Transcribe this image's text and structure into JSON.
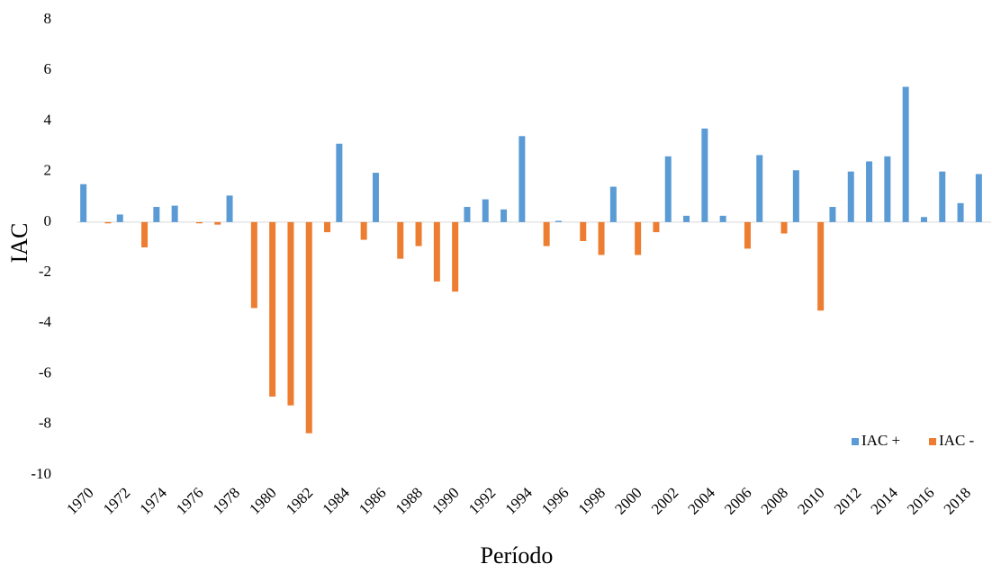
{
  "chart_data": {
    "type": "bar",
    "x_label": "Período",
    "y_label": "IAC",
    "categories": [
      "1970",
      null,
      "1972",
      null,
      "1974",
      null,
      "1976",
      null,
      "1978",
      null,
      "1980",
      null,
      "1982",
      null,
      "1984",
      null,
      "1986",
      null,
      "1988",
      null,
      "1990",
      null,
      "1992",
      null,
      "1994",
      null,
      "1996",
      null,
      "1998",
      null,
      "2000",
      null,
      "2002",
      null,
      "2004",
      null,
      "2006",
      null,
      "2008",
      null,
      "2010",
      null,
      "2012",
      null,
      "2014",
      null,
      "2016",
      null,
      "2018",
      null
    ],
    "series": [
      {
        "name": "IAC +",
        "color": "#5b9bd5",
        "values": [
          1.5,
          null,
          0.3,
          null,
          0.6,
          0.65,
          null,
          null,
          1.05,
          null,
          null,
          null,
          null,
          null,
          3.1,
          null,
          1.95,
          null,
          null,
          null,
          null,
          0.6,
          0.9,
          0.5,
          3.4,
          null,
          0.05,
          null,
          null,
          1.4,
          null,
          null,
          2.6,
          0.25,
          3.7,
          0.25,
          null,
          2.65,
          null,
          2.05,
          null,
          0.6,
          2.0,
          2.4,
          2.6,
          5.35,
          0.2,
          2.0,
          0.75,
          1.9
        ]
      },
      {
        "name": "IAC -",
        "color": "#ed7d31",
        "values": [
          null,
          -0.05,
          null,
          -1.0,
          null,
          null,
          -0.05,
          -0.1,
          null,
          -3.4,
          -6.9,
          -7.25,
          -8.35,
          -0.4,
          null,
          -0.7,
          null,
          -1.45,
          -0.95,
          -2.35,
          -2.75,
          null,
          null,
          null,
          null,
          -0.95,
          null,
          -0.75,
          -1.3,
          null,
          -1.3,
          -0.4,
          null,
          null,
          null,
          null,
          -1.05,
          null,
          -0.45,
          null,
          -3.5,
          null,
          null,
          null,
          null,
          null,
          null,
          null,
          null,
          null
        ]
      }
    ],
    "ylim": [
      -10,
      8
    ],
    "yticks": [
      -10,
      -8,
      -6,
      -4,
      -2,
      0,
      2,
      4,
      6,
      8
    ],
    "grid": false,
    "legend": "lower-right"
  }
}
